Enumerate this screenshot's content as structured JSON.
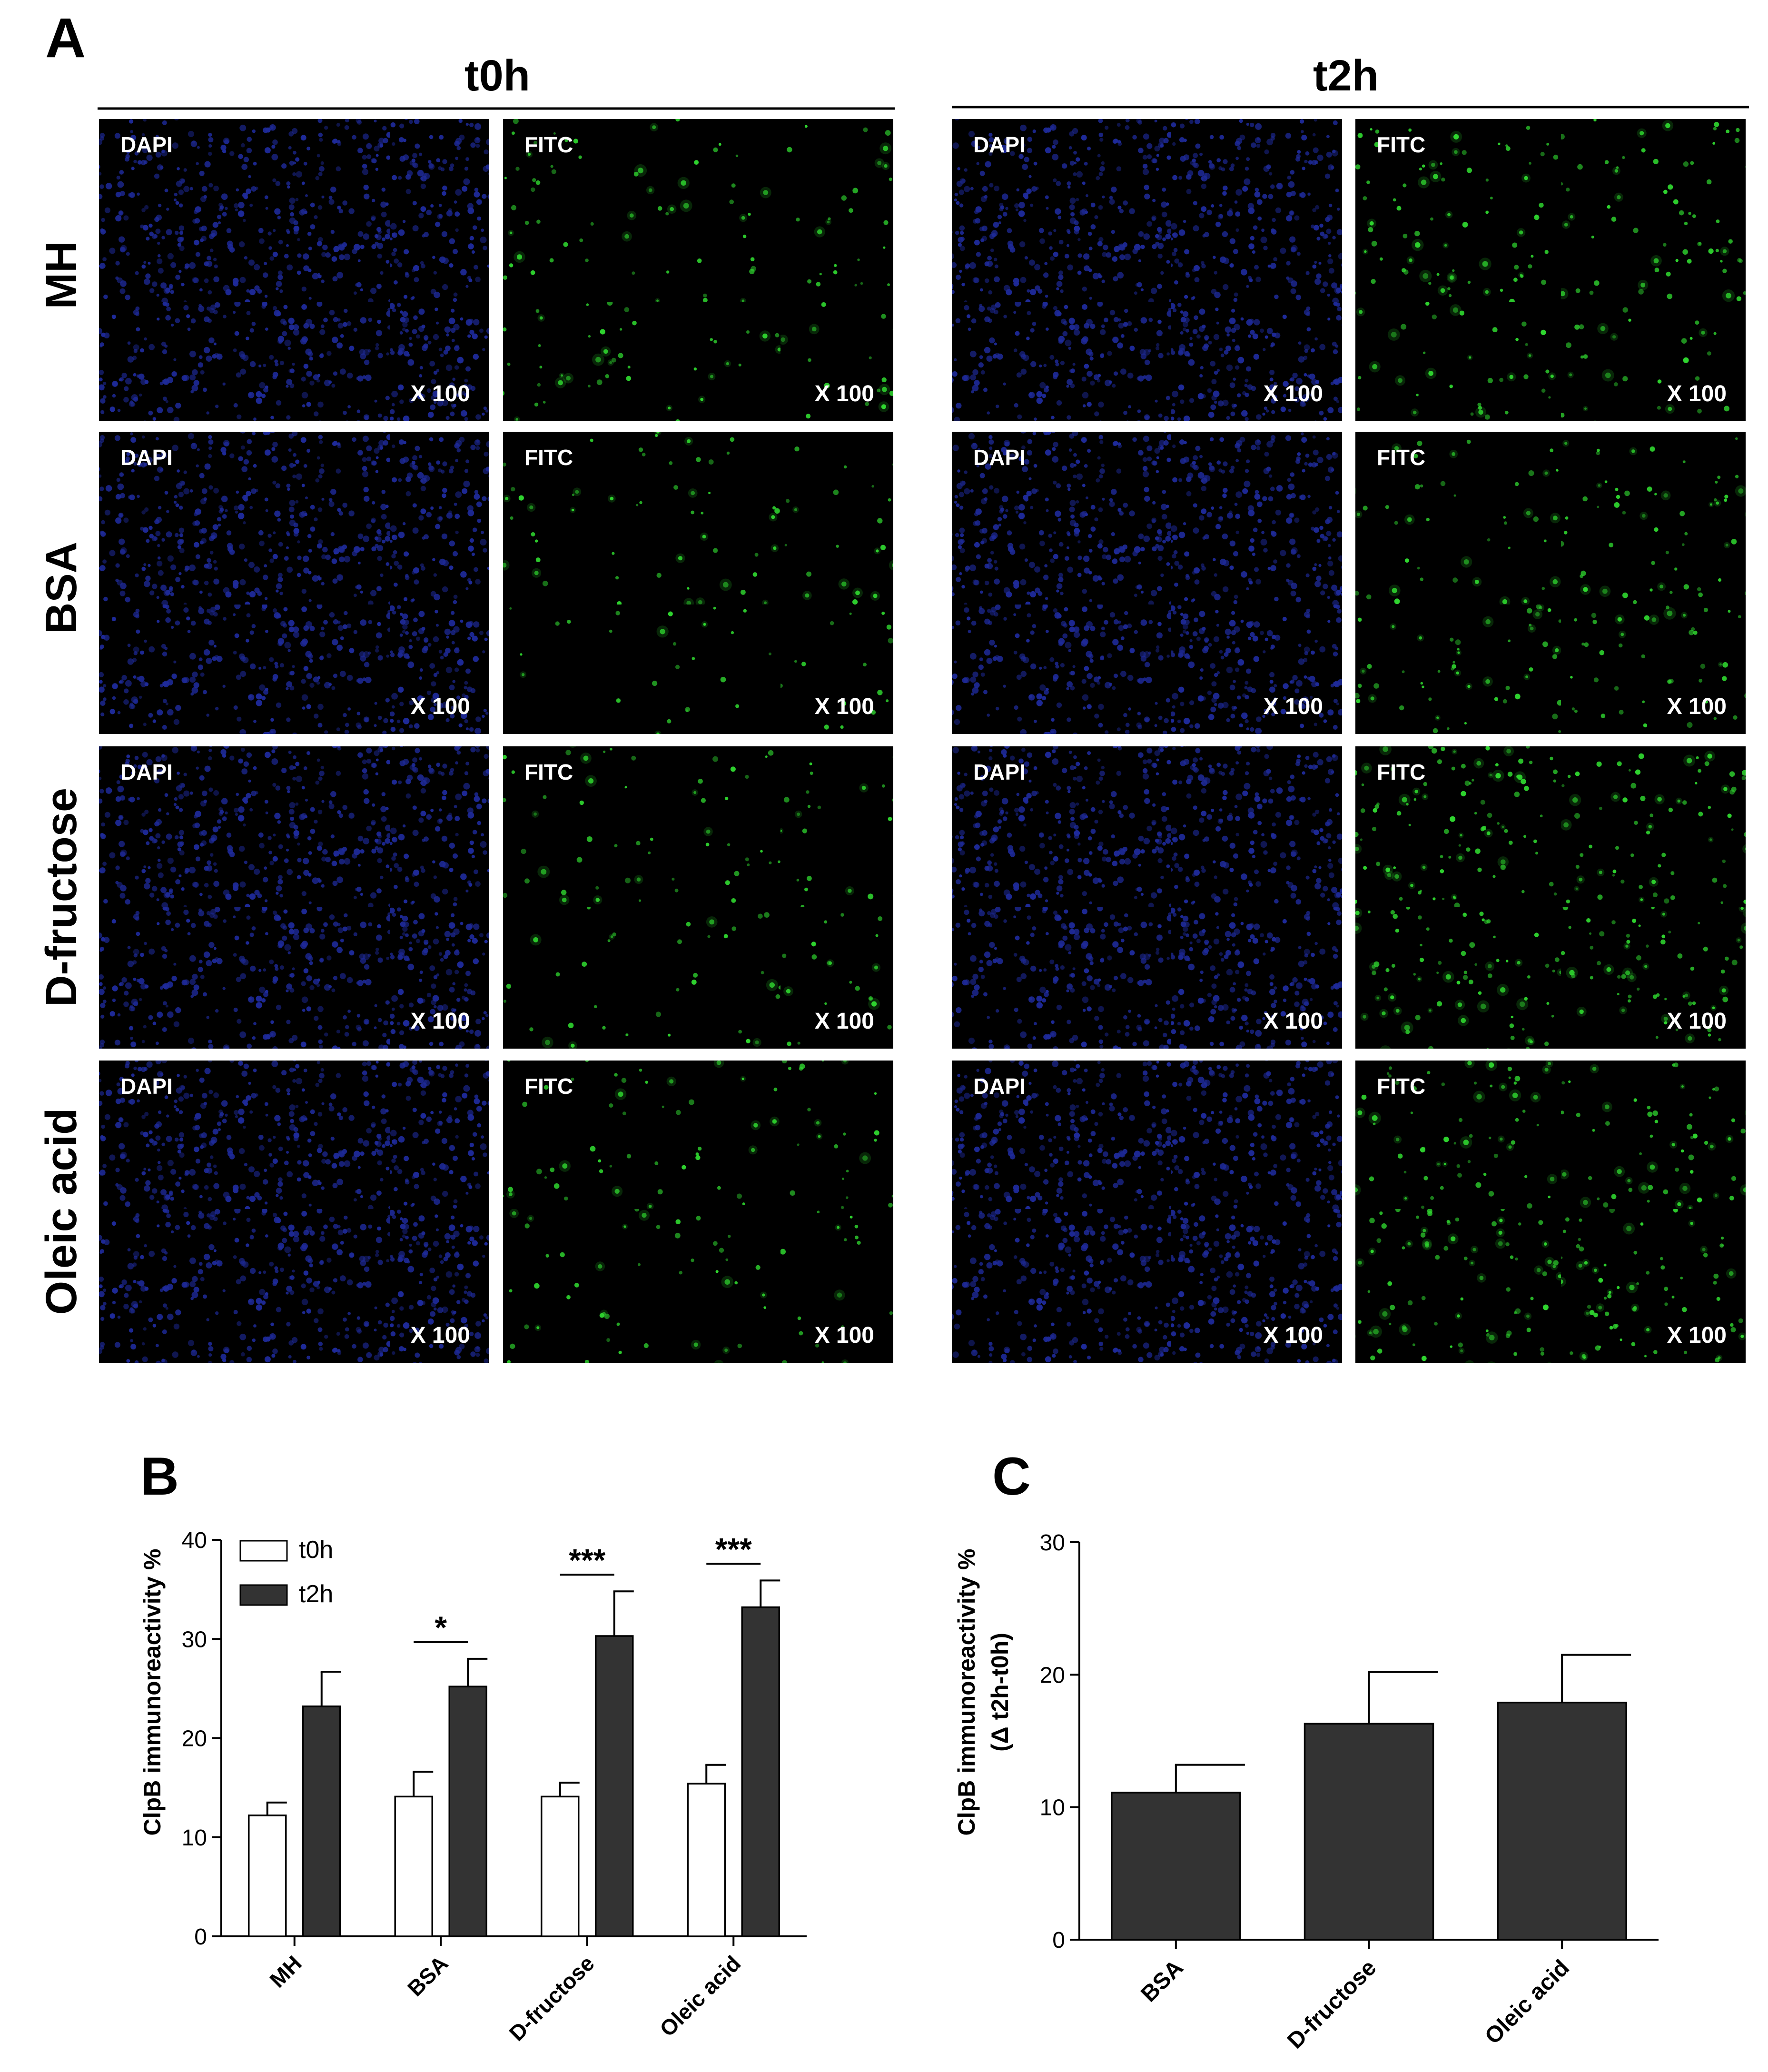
{
  "panel_a": {
    "letter": "A",
    "columns": [
      "t0h",
      "t2h"
    ],
    "rows": [
      "MH",
      "BSA",
      "D-fructose",
      "Oleic acid"
    ],
    "channel_labels": [
      "DAPI",
      "FITC"
    ],
    "magnification": "X 100",
    "channel_colors": {
      "DAPI": "#1e2a9a",
      "FITC": "#2fd62f"
    },
    "fitc_intensity": {
      "t0h": [
        0.35,
        0.25,
        0.3,
        0.3
      ],
      "t2h": [
        0.55,
        0.5,
        0.85,
        0.75
      ]
    }
  },
  "chart_data": [
    {
      "type": "bar",
      "panel": "B",
      "categories": [
        "MH",
        "BSA",
        "D-fructose",
        "Oleic acid"
      ],
      "series": [
        {
          "name": "t0h",
          "values": [
            12.2,
            14.1,
            14.1,
            15.4
          ],
          "errors": [
            1.3,
            2.5,
            1.4,
            1.9
          ],
          "color": "#ffffff"
        },
        {
          "name": "t2h",
          "values": [
            23.2,
            25.2,
            30.3,
            33.2
          ],
          "errors": [
            3.5,
            2.8,
            4.5,
            2.7
          ],
          "color": "#333333"
        }
      ],
      "ylabel": "ClpB immunoreactivity %",
      "ylim": [
        0,
        40
      ],
      "yticks": [
        0,
        10,
        20,
        30,
        40
      ],
      "legend_position": "top-left",
      "significance": [
        {
          "category": "BSA",
          "label": "*"
        },
        {
          "category": "D-fructose",
          "label": "***"
        },
        {
          "category": "Oleic acid",
          "label": "***"
        }
      ]
    },
    {
      "type": "bar",
      "panel": "C",
      "categories": [
        "BSA",
        "D-fructose",
        "Oleic acid"
      ],
      "values": [
        11.1,
        16.3,
        17.9
      ],
      "errors": [
        2.1,
        3.9,
        3.6
      ],
      "color": "#333333",
      "ylabel": "ClpB immunoreactivity %",
      "ylabel2": "(Δ t2h-t0h)",
      "ylim": [
        0,
        30
      ],
      "yticks": [
        0,
        10,
        20,
        30
      ]
    }
  ]
}
